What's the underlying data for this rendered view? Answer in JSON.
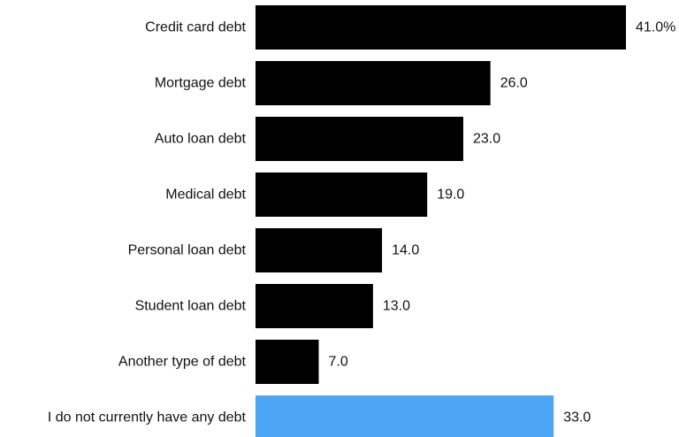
{
  "chart_data": {
    "type": "bar",
    "orientation": "horizontal",
    "title": "",
    "xlabel": "",
    "ylabel": "",
    "categories": [
      "Credit card debt",
      "Mortgage debt",
      "Auto loan debt",
      "Medical debt",
      "Personal loan debt",
      "Student loan debt",
      "Another type of debt",
      "I do not currently have any debt"
    ],
    "values": [
      41.0,
      26.0,
      23.0,
      19.0,
      14.0,
      13.0,
      7.0,
      33.0
    ],
    "value_labels": [
      "41.0%",
      "26.0",
      "23.0",
      "19.0",
      "14.0",
      "13.0",
      "7.0",
      "33.0"
    ],
    "xlim": [
      0,
      41
    ],
    "grid": false,
    "legend": "none",
    "colors": {
      "default": "#000000",
      "highlight": "#4da6f5",
      "text": "#111111"
    },
    "highlight_index": 7
  }
}
